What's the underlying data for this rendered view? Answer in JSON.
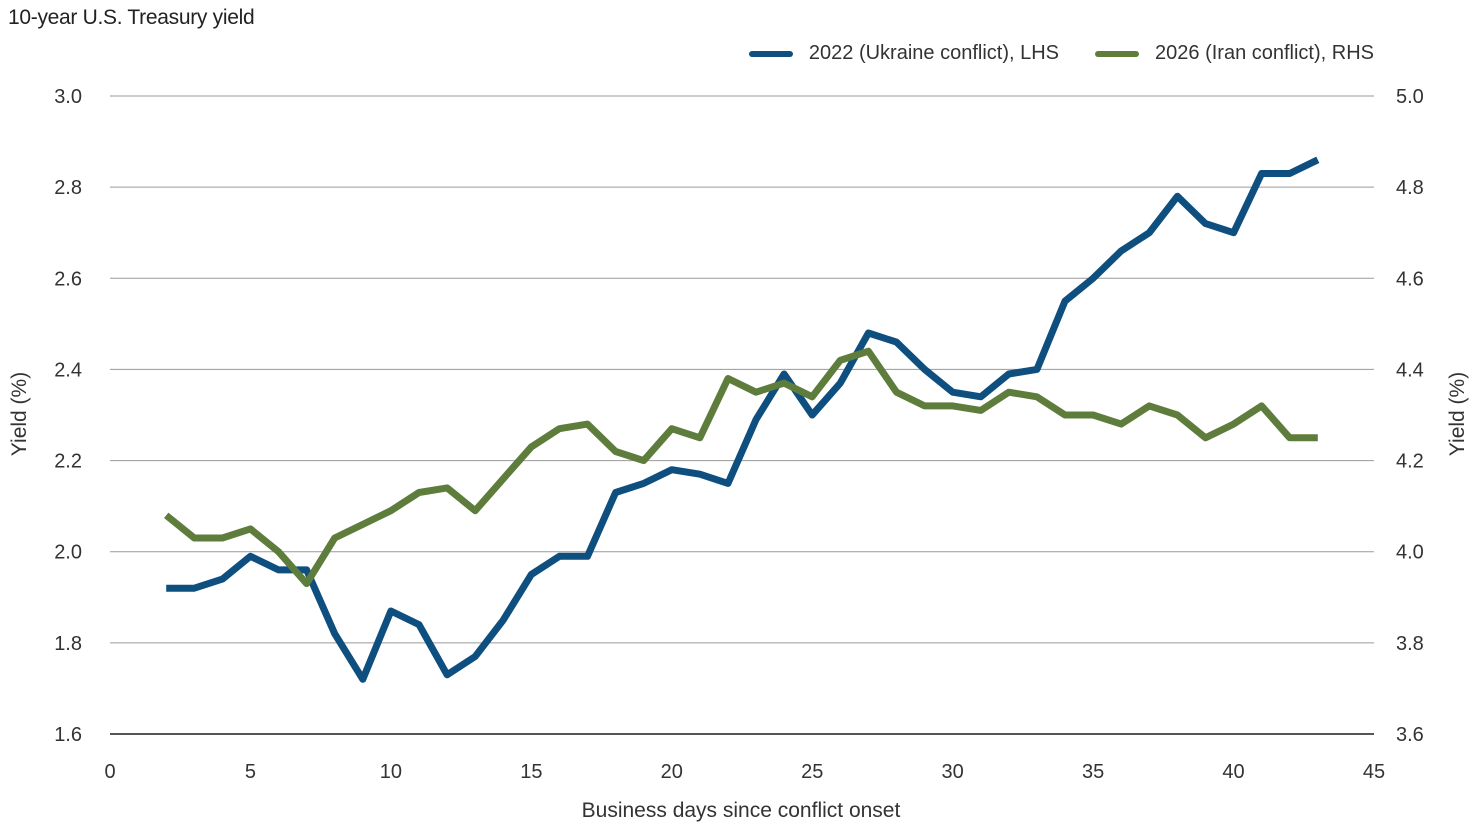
{
  "chart_data": {
    "type": "line",
    "title": "10-year U.S. Treasury yield",
    "xlabel": "Business days since conflict onset",
    "ylabel_left": "Yield (%)",
    "ylabel_right": "Yield (%)",
    "xlim": [
      0,
      45
    ],
    "ylim_left": [
      1.6,
      3.0
    ],
    "ylim_right": [
      3.6,
      5.0
    ],
    "x_ticks": [
      "0",
      "5",
      "10",
      "15",
      "20",
      "25",
      "30",
      "35",
      "40",
      "45"
    ],
    "y_ticks_left": [
      "1.6",
      "1.8",
      "2.0",
      "2.2",
      "2.4",
      "2.6",
      "2.8",
      "3.0"
    ],
    "y_ticks_right": [
      "3.6",
      "3.8",
      "4.0",
      "4.2",
      "4.4",
      "4.6",
      "4.8",
      "5.0"
    ],
    "grid": true,
    "legend_position": "top-right",
    "series": [
      {
        "name": "2022 (Ukraine conflict), LHS",
        "axis": "left",
        "color": "#0e4f7f",
        "x": [
          2,
          3,
          4,
          5,
          6,
          7,
          8,
          9,
          10,
          11,
          12,
          13,
          14,
          15,
          16,
          17,
          18,
          19,
          20,
          21,
          22,
          23,
          24,
          25,
          26,
          27,
          28,
          29,
          30,
          31,
          32,
          33,
          34,
          35,
          36,
          37,
          38,
          39,
          40,
          41,
          42,
          43
        ],
        "values": [
          1.92,
          1.92,
          1.94,
          1.99,
          1.96,
          1.96,
          1.82,
          1.72,
          1.87,
          1.84,
          1.73,
          1.77,
          1.85,
          1.95,
          1.99,
          1.99,
          2.13,
          2.15,
          2.18,
          2.17,
          2.15,
          2.29,
          2.39,
          2.3,
          2.37,
          2.48,
          2.46,
          2.4,
          2.35,
          2.34,
          2.39,
          2.4,
          2.55,
          2.6,
          2.66,
          2.7,
          2.78,
          2.72,
          2.7,
          2.83,
          2.83,
          2.86
        ]
      },
      {
        "name": "2026 (Iran conflict), RHS",
        "axis": "right",
        "color": "#5e7d3c",
        "x": [
          2,
          3,
          4,
          5,
          6,
          7,
          8,
          9,
          10,
          11,
          12,
          13,
          14,
          15,
          16,
          17,
          18,
          19,
          20,
          21,
          22,
          23,
          24,
          25,
          26,
          27,
          28,
          29,
          30,
          31,
          32,
          33,
          34,
          35,
          36,
          37,
          38,
          39,
          40,
          41,
          42,
          43
        ],
        "values": [
          4.08,
          4.03,
          4.03,
          4.05,
          4.0,
          3.93,
          4.03,
          4.06,
          4.09,
          4.13,
          4.14,
          4.09,
          4.16,
          4.23,
          4.27,
          4.28,
          4.22,
          4.2,
          4.27,
          4.25,
          4.38,
          4.35,
          4.37,
          4.34,
          4.42,
          4.44,
          4.35,
          4.32,
          4.32,
          4.31,
          4.35,
          4.34,
          4.3,
          4.3,
          4.28,
          4.32,
          4.3,
          4.25,
          4.28,
          4.32,
          4.25,
          4.25
        ]
      }
    ]
  }
}
